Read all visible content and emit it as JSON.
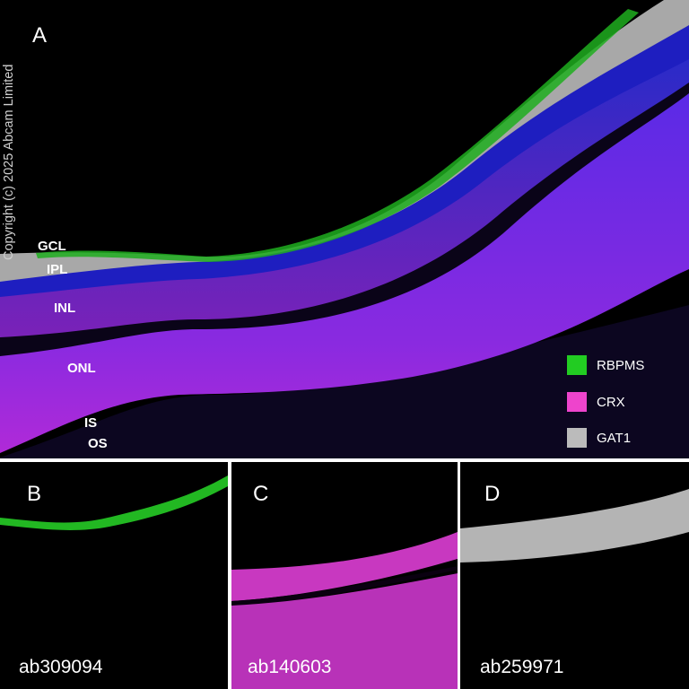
{
  "copyright": "Copyright (c) 2025 Abcam Limited",
  "panels": {
    "a": {
      "letter": "A"
    },
    "b": {
      "letter": "B",
      "antibody": "ab309094"
    },
    "c": {
      "letter": "C",
      "antibody": "ab140603"
    },
    "d": {
      "letter": "D",
      "antibody": "ab259971"
    }
  },
  "layers": {
    "gcl": "GCL",
    "ipl": "IPL",
    "inl": "INL",
    "onl": "ONL",
    "is": "IS",
    "os": "OS"
  },
  "legend": [
    {
      "label": "RBPMS",
      "color": "#22cc22"
    },
    {
      "label": "CRX",
      "color": "#ee44cc"
    },
    {
      "label": "GAT1",
      "color": "#bbbbbb"
    }
  ],
  "colors": {
    "background": "#000000",
    "rbpms_green": "#22cc22",
    "crx_magenta": "#ee44cc",
    "gat1_gray": "#bbbbbb",
    "dapi_blue": "#2a2ad0",
    "divider": "#ffffff"
  }
}
